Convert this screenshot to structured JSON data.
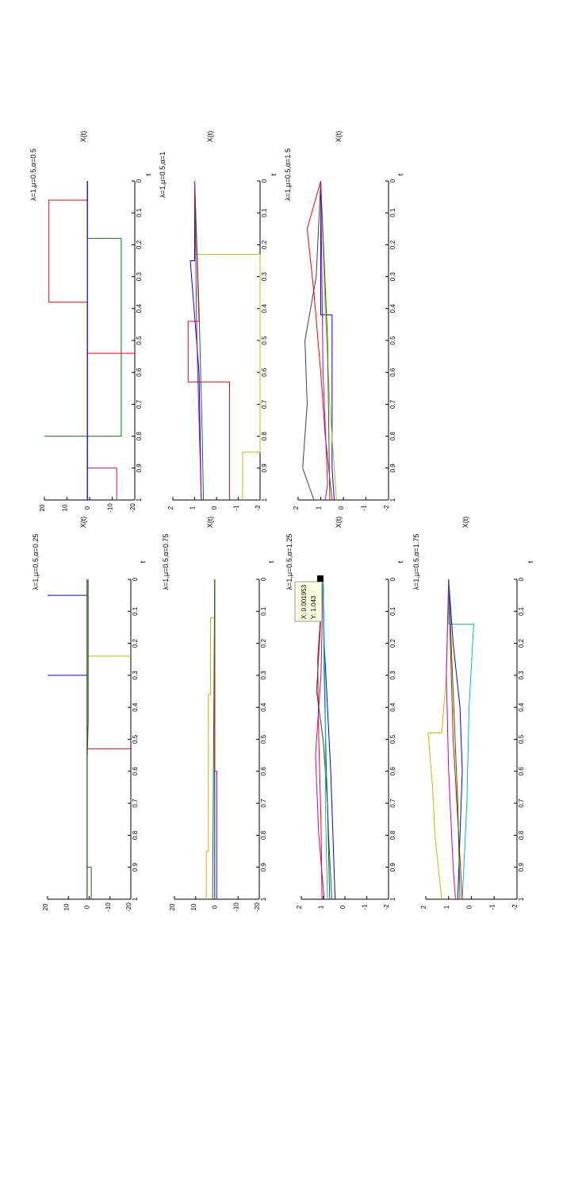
{
  "figure": {
    "panels": [
      {
        "id": "p1",
        "title": "λ=1,μ=0.5,α=0.25",
        "ylabel": "X(t)"
      },
      {
        "id": "p2",
        "title": "λ=1,μ=0.5,α=0.75",
        "ylabel": "X(t)"
      },
      {
        "id": "p3",
        "title": "λ=1,μ=0.5,α=1.25",
        "ylabel": "X(t)"
      },
      {
        "id": "p4",
        "title": "λ=1,μ=0.5,α=1.75",
        "ylabel": "X(t)"
      },
      {
        "id": "p5",
        "title": "λ=1,μ=0.5,α=0.5",
        "ylabel": "X(t)"
      },
      {
        "id": "p6",
        "title": "λ=1,μ=0.5,α=1",
        "ylabel": "X(t)"
      },
      {
        "id": "p7",
        "title": "λ=1,μ=0.5,α=1.5",
        "ylabel": "X(t)"
      }
    ],
    "datatip": {
      "x_label": "X: 0.001953",
      "y_label": "Y: 1.043"
    },
    "colors": [
      "#0000ff",
      "#008000",
      "#ff0000",
      "#00bfbf",
      "#bf00bf",
      "#bfbf00",
      "#404040"
    ]
  },
  "chart_data": [
    {
      "type": "line",
      "title": "λ=1,μ=0.5,α=0.25",
      "xlabel": "t",
      "ylabel": "X(t)",
      "xlim": [
        0,
        1
      ],
      "ylim": [
        -20,
        20
      ],
      "xticks": [
        "0",
        "0.1",
        "0.2",
        "0.3",
        "0.4",
        "0.5",
        "0.6",
        "0.7",
        "0.8",
        "0.9",
        "1"
      ],
      "yticks": [
        "20",
        "10",
        "0",
        "-10",
        "-20"
      ],
      "series": [
        {
          "color": "#0000ff",
          "points": [
            [
              0,
              1
            ],
            [
              0.05,
              1
            ],
            [
              0.05,
              20
            ],
            [
              0.05,
              1
            ],
            [
              0.3,
              1
            ],
            [
              0.3,
              20
            ],
            [
              0.3,
              1
            ],
            [
              1,
              1
            ]
          ]
        },
        {
          "color": "#bfbf00",
          "points": [
            [
              0,
              1
            ],
            [
              0.24,
              1
            ],
            [
              0.24,
              -20
            ],
            [
              0.24,
              1
            ],
            [
              1,
              1
            ]
          ]
        },
        {
          "color": "#ff0000",
          "points": [
            [
              0,
              1
            ],
            [
              0.53,
              1
            ],
            [
              0.53,
              -20
            ],
            [
              0.53,
              1
            ],
            [
              1,
              1
            ]
          ]
        },
        {
          "color": "#404040",
          "points": [
            [
              0,
              1
            ],
            [
              0.9,
              1
            ],
            [
              0.9,
              -1
            ],
            [
              1,
              -1
            ]
          ]
        },
        {
          "color": "#008000",
          "points": [
            [
              0,
              0.5
            ],
            [
              0.45,
              0.5
            ],
            [
              0.57,
              1
            ],
            [
              1,
              1
            ]
          ]
        }
      ]
    },
    {
      "type": "line",
      "title": "λ=1,μ=0.5,α=0.75",
      "xlabel": "t",
      "ylabel": "X(t)",
      "xlim": [
        0,
        1
      ],
      "ylim": [
        -20,
        20
      ],
      "xticks": [
        "0",
        "0.1",
        "0.2",
        "0.3",
        "0.4",
        "0.5",
        "0.6",
        "0.7",
        "0.8",
        "0.9",
        "1"
      ],
      "yticks": [
        "20",
        "10",
        "0",
        "-10",
        "-20"
      ],
      "series": [
        {
          "color": "#bfbf00",
          "points": [
            [
              0.12,
              1
            ],
            [
              0.12,
              3
            ],
            [
              0.36,
              3
            ],
            [
              0.36,
              4
            ],
            [
              0.85,
              4
            ],
            [
              0.85,
              5
            ],
            [
              1,
              5
            ]
          ]
        },
        {
          "color": "#0000ff",
          "points": [
            [
              0,
              1
            ],
            [
              1,
              1
            ]
          ]
        },
        {
          "color": "#ff0000",
          "points": [
            [
              0,
              1
            ],
            [
              0.6,
              1
            ],
            [
              0.6,
              0
            ],
            [
              1,
              0
            ]
          ]
        },
        {
          "color": "#008000",
          "points": [
            [
              0,
              1
            ],
            [
              1,
              2
            ]
          ]
        }
      ]
    },
    {
      "type": "line",
      "title": "λ=1,μ=0.5,α=1.25",
      "xlabel": "t",
      "ylabel": "X(t)",
      "xlim": [
        0,
        1
      ],
      "ylim": [
        -2,
        2
      ],
      "xticks": [
        "0",
        "0.1",
        "0.2",
        "0.3",
        "0.4",
        "0.5",
        "0.6",
        "0.7",
        "0.8",
        "0.9",
        "1"
      ],
      "yticks": [
        "2",
        "1",
        "0",
        "-1",
        "-2"
      ],
      "series": [
        {
          "color": "#0000ff",
          "points": [
            [
              0,
              1
            ],
            [
              0.2,
              0.95
            ],
            [
              0.4,
              0.8
            ],
            [
              0.6,
              0.65
            ],
            [
              0.8,
              0.55
            ],
            [
              1,
              0.45
            ]
          ]
        },
        {
          "color": "#ff0000",
          "points": [
            [
              0,
              1
            ],
            [
              0.25,
              1.25
            ],
            [
              0.5,
              1.2
            ],
            [
              0.75,
              1.1
            ],
            [
              1,
              1.05
            ]
          ]
        },
        {
          "color": "#bf00bf",
          "points": [
            [
              0,
              1
            ],
            [
              0.3,
              1.1
            ],
            [
              0.55,
              1.35
            ],
            [
              0.8,
              1.2
            ],
            [
              1,
              0.95
            ]
          ]
        },
        {
          "color": "#008000",
          "points": [
            [
              0,
              1
            ],
            [
              0.3,
              0.95
            ],
            [
              0.6,
              0.85
            ],
            [
              0.8,
              0.75
            ],
            [
              1,
              0.6
            ]
          ]
        },
        {
          "color": "#404040",
          "points": [
            [
              0,
              1
            ],
            [
              0.35,
              1.3
            ],
            [
              0.5,
              1.0
            ],
            [
              0.7,
              0.8
            ],
            [
              1,
              0.7
            ]
          ]
        },
        {
          "color": "#00bfbf",
          "points": [
            [
              0,
              1
            ],
            [
              0.4,
              0.9
            ],
            [
              0.7,
              0.9
            ],
            [
              1,
              0.8
            ]
          ]
        }
      ]
    },
    {
      "type": "line",
      "title": "λ=1,μ=0.5,α=1.75",
      "xlabel": "t",
      "ylabel": "X(t)",
      "xlim": [
        0,
        1
      ],
      "ylim": [
        -2,
        2
      ],
      "xticks": [
        "0",
        "0.1",
        "0.2",
        "0.3",
        "0.4",
        "0.5",
        "0.6",
        "0.7",
        "0.8",
        "0.9",
        "1"
      ],
      "yticks": [
        "2",
        "1",
        "0",
        "-1",
        "-2"
      ],
      "series": [
        {
          "color": "#00bfbf",
          "points": [
            [
              0,
              1
            ],
            [
              0.14,
              1
            ],
            [
              0.14,
              -0.1
            ],
            [
              0.4,
              0.1
            ],
            [
              0.7,
              0.2
            ],
            [
              1,
              0.4
            ]
          ]
        },
        {
          "color": "#bfbf00",
          "points": [
            [
              0,
              1
            ],
            [
              0.3,
              1.1
            ],
            [
              0.48,
              1.3
            ],
            [
              0.48,
              1.9
            ],
            [
              0.65,
              1.7
            ],
            [
              0.8,
              1.6
            ],
            [
              1,
              1.3
            ]
          ]
        },
        {
          "color": "#0000ff",
          "points": [
            [
              0,
              1
            ],
            [
              0.2,
              0.8
            ],
            [
              0.4,
              0.5
            ],
            [
              0.6,
              0.4
            ],
            [
              0.8,
              0.5
            ],
            [
              1,
              0.6
            ]
          ]
        },
        {
          "color": "#ff0000",
          "points": [
            [
              0,
              1
            ],
            [
              0.25,
              0.9
            ],
            [
              0.5,
              0.8
            ],
            [
              0.75,
              0.6
            ],
            [
              1,
              0.4
            ]
          ]
        },
        {
          "color": "#bf00bf",
          "points": [
            [
              0,
              1
            ],
            [
              0.3,
              1.1
            ],
            [
              0.6,
              1.0
            ],
            [
              0.9,
              0.8
            ],
            [
              1,
              0.7
            ]
          ]
        },
        {
          "color": "#008000",
          "points": [
            [
              0,
              1
            ],
            [
              0.35,
              0.8
            ],
            [
              0.7,
              0.6
            ],
            [
              1,
              0.5
            ]
          ]
        }
      ]
    },
    {
      "type": "line",
      "title": "λ=1,μ=0.5,α=0.5",
      "xlabel": "t",
      "ylabel": "X(t)",
      "xlim": [
        0,
        1
      ],
      "ylim": [
        -20,
        20
      ],
      "xticks": [
        "0",
        "0.1",
        "0.2",
        "0.3",
        "0.4",
        "0.5",
        "0.6",
        "0.7",
        "0.8",
        "0.9",
        "1"
      ],
      "yticks": [
        "20",
        "10",
        "0",
        "-10",
        "-20"
      ],
      "series": [
        {
          "color": "#ff0000",
          "points": [
            [
              0,
              1
            ],
            [
              0.06,
              1
            ],
            [
              0.06,
              18
            ],
            [
              0.38,
              18
            ],
            [
              0.38,
              1
            ],
            [
              0.54,
              1
            ],
            [
              0.54,
              -20
            ],
            [
              0.54,
              1
            ],
            [
              1,
              1
            ]
          ]
        },
        {
          "color": "#008000",
          "points": [
            [
              0,
              1
            ],
            [
              0.18,
              1
            ],
            [
              0.18,
              -14
            ],
            [
              0.8,
              -14
            ],
            [
              0.8,
              20
            ],
            [
              0.8,
              1
            ],
            [
              1,
              1
            ]
          ]
        },
        {
          "color": "#bf00bf",
          "points": [
            [
              0,
              1
            ],
            [
              0.9,
              1
            ],
            [
              0.9,
              -12
            ],
            [
              1,
              -12
            ]
          ]
        },
        {
          "color": "#0000ff",
          "points": [
            [
              0,
              1
            ],
            [
              1,
              1
            ]
          ]
        }
      ]
    },
    {
      "type": "line",
      "title": "λ=1,μ=0.5,α=1",
      "xlabel": "t",
      "ylabel": "X(t)",
      "xlim": [
        0,
        1
      ],
      "ylim": [
        -2,
        2
      ],
      "xticks": [
        "0",
        "0.1",
        "0.2",
        "0.3",
        "0.4",
        "0.5",
        "0.6",
        "0.7",
        "0.8",
        "0.9",
        "1"
      ],
      "yticks": [
        "2",
        "1",
        "0",
        "-1",
        "-2"
      ],
      "series": [
        {
          "color": "#ff0000",
          "points": [
            [
              0,
              1
            ],
            [
              0.44,
              0.8
            ],
            [
              0.44,
              1.3
            ],
            [
              0.63,
              1.3
            ],
            [
              0.63,
              -0.6
            ],
            [
              1,
              -0.6
            ]
          ]
        },
        {
          "color": "#bfbf00",
          "points": [
            [
              0,
              1
            ],
            [
              0.23,
              1
            ],
            [
              0.23,
              -2
            ],
            [
              0.85,
              -2
            ],
            [
              0.85,
              -1.2
            ],
            [
              1,
              -1.2
            ]
          ]
        },
        {
          "color": "#0000ff",
          "points": [
            [
              0,
              1
            ],
            [
              0.25,
              1
            ],
            [
              0.25,
              1.2
            ],
            [
              0.6,
              0.8
            ],
            [
              1,
              0.7
            ]
          ]
        },
        {
          "color": "#008000",
          "points": [
            [
              0,
              1
            ],
            [
              0.4,
              0.8
            ],
            [
              0.8,
              0.65
            ],
            [
              1,
              0.6
            ]
          ]
        },
        {
          "color": "#bf00bf",
          "points": [
            [
              0,
              1
            ],
            [
              0.5,
              0.9
            ],
            [
              1,
              0.7
            ]
          ]
        }
      ]
    },
    {
      "type": "line",
      "title": "λ=1,μ=0.5,α=1.5",
      "xlabel": "t",
      "ylabel": "X(t)",
      "xlim": [
        0,
        1
      ],
      "ylim": [
        -2,
        2
      ],
      "xticks": [
        "0",
        "0.1",
        "0.2",
        "0.3",
        "0.4",
        "0.5",
        "0.6",
        "0.7",
        "0.8",
        "0.9",
        "1"
      ],
      "yticks": [
        "2",
        "1",
        "0",
        "-1",
        "-2"
      ],
      "series": [
        {
          "color": "#404040",
          "points": [
            [
              0,
              1
            ],
            [
              0.3,
              1.2
            ],
            [
              0.5,
              1.7
            ],
            [
              0.7,
              1.6
            ],
            [
              0.9,
              1.8
            ],
            [
              1,
              1.3
            ]
          ]
        },
        {
          "color": "#ff0000",
          "points": [
            [
              0,
              1
            ],
            [
              0.15,
              1.6
            ],
            [
              0.35,
              1.3
            ],
            [
              0.6,
              1.0
            ],
            [
              0.8,
              0.8
            ],
            [
              1,
              0.5
            ]
          ]
        },
        {
          "color": "#0000ff",
          "points": [
            [
              0,
              1
            ],
            [
              0.42,
              1.0
            ],
            [
              0.42,
              0.5
            ],
            [
              0.9,
              0.5
            ],
            [
              1,
              0.4
            ]
          ]
        },
        {
          "color": "#bfbf00",
          "points": [
            [
              0,
              1
            ],
            [
              0.4,
              0.8
            ],
            [
              0.7,
              0.6
            ],
            [
              1,
              0.3
            ]
          ]
        },
        {
          "color": "#008000",
          "points": [
            [
              0,
              1
            ],
            [
              0.5,
              0.7
            ],
            [
              1,
              0.6
            ]
          ]
        },
        {
          "color": "#bf00bf",
          "points": [
            [
              0,
              1
            ],
            [
              0.6,
              0.9
            ],
            [
              0.95,
              0.7
            ],
            [
              1,
              0.8
            ]
          ]
        }
      ]
    }
  ]
}
